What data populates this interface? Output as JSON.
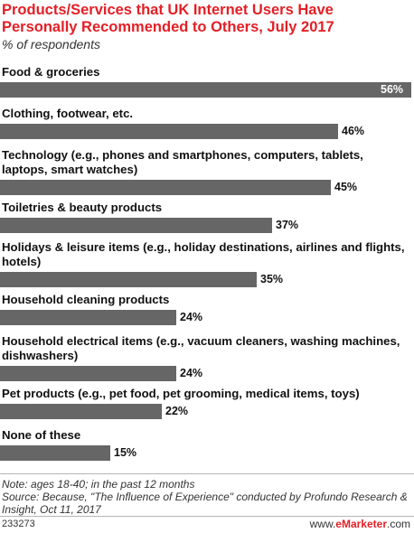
{
  "chart_data": {
    "type": "bar",
    "orientation": "horizontal",
    "title": "Products/Services that UK Internet Users Have Personally Recommended to Others, July 2017",
    "subtitle": "% of respondents",
    "categories": [
      "Food & groceries",
      "Clothing, footwear, etc.",
      "Technology (e.g., phones and smartphones, computers, tablets, laptops, smart watches)",
      "Toiletries & beauty products",
      "Holidays & leisure items (e.g., holiday destinations, airlines and flights, hotels)",
      "Household cleaning products",
      "Household electrical items (e.g., vacuum cleaners, washing machines, dishwashers)",
      "Pet products (e.g., pet food, pet grooming, medical items, toys)",
      "None of these"
    ],
    "values": [
      56,
      46,
      45,
      37,
      35,
      24,
      24,
      22,
      15
    ],
    "value_labels": [
      "56%",
      "46%",
      "45%",
      "37%",
      "35%",
      "24%",
      "24%",
      "22%",
      "15%"
    ],
    "bar_color": "#666666",
    "grid": false
  },
  "notes": {
    "note": "Note: ages 18-40; in the past 12 months",
    "source": "Source: Because, \"The Influence of Experience\" conducted by Profundo Research & Insight, Oct 11, 2017"
  },
  "footer": {
    "chart_id": "233273",
    "brand_prefix": "www.",
    "brand_name": "eMarketer",
    "brand_suffix": ".com"
  },
  "colors": {
    "title": "#e31f26",
    "bar": "#666666"
  }
}
